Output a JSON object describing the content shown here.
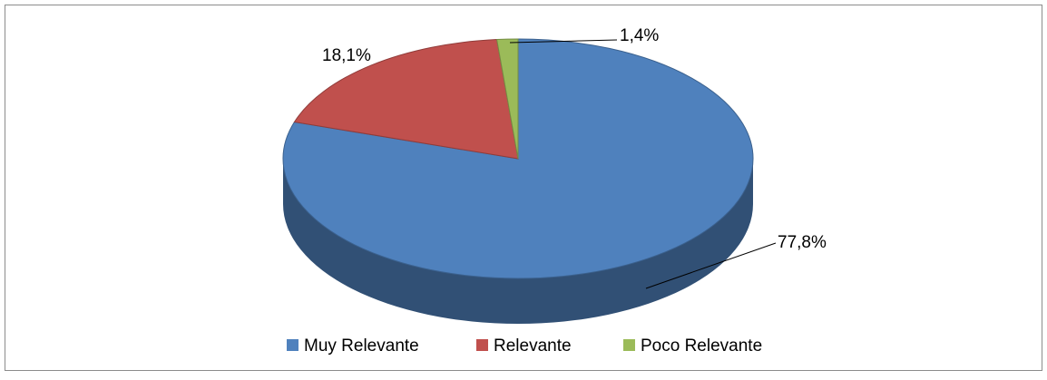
{
  "chart_data": {
    "type": "pie",
    "pie_style": "3d",
    "categories": [
      "Muy Relevante",
      "Relevante",
      "Poco Relevante"
    ],
    "values": [
      77.8,
      18.1,
      1.4
    ],
    "value_labels": [
      "77,8%",
      "18,1%",
      "1,4%"
    ],
    "colors": [
      "#4f81bd",
      "#c0504d",
      "#9bbb59"
    ],
    "legend": "bottom"
  }
}
